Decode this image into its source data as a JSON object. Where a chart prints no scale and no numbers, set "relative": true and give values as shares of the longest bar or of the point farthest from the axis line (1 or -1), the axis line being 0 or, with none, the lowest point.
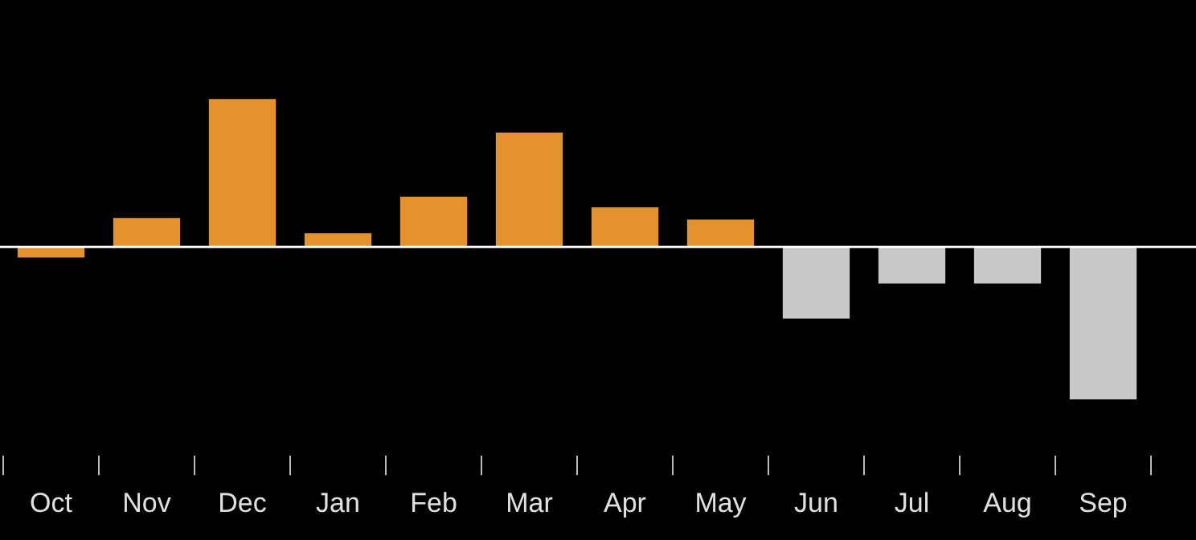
{
  "chart_data": {
    "type": "bar",
    "relative": true,
    "categories": [
      "Oct",
      "Nov",
      "Dec",
      "Jan",
      "Feb",
      "Mar",
      "Apr",
      "May",
      "Jun",
      "Jul",
      "Aug",
      "Sep"
    ],
    "values": [
      -0.07,
      0.19,
      0.97,
      0.09,
      0.33,
      0.75,
      0.26,
      0.18,
      -0.47,
      -0.24,
      -0.24,
      -1
    ],
    "colors": [
      "#e3922c",
      "#e3922c",
      "#e3922c",
      "#e3922c",
      "#e3922c",
      "#e3922c",
      "#e3922c",
      "#e3922c",
      "#c8c8c8",
      "#c8c8c8",
      "#c8c8c8",
      "#c8c8c8"
    ],
    "grid": false,
    "legend": false
  }
}
